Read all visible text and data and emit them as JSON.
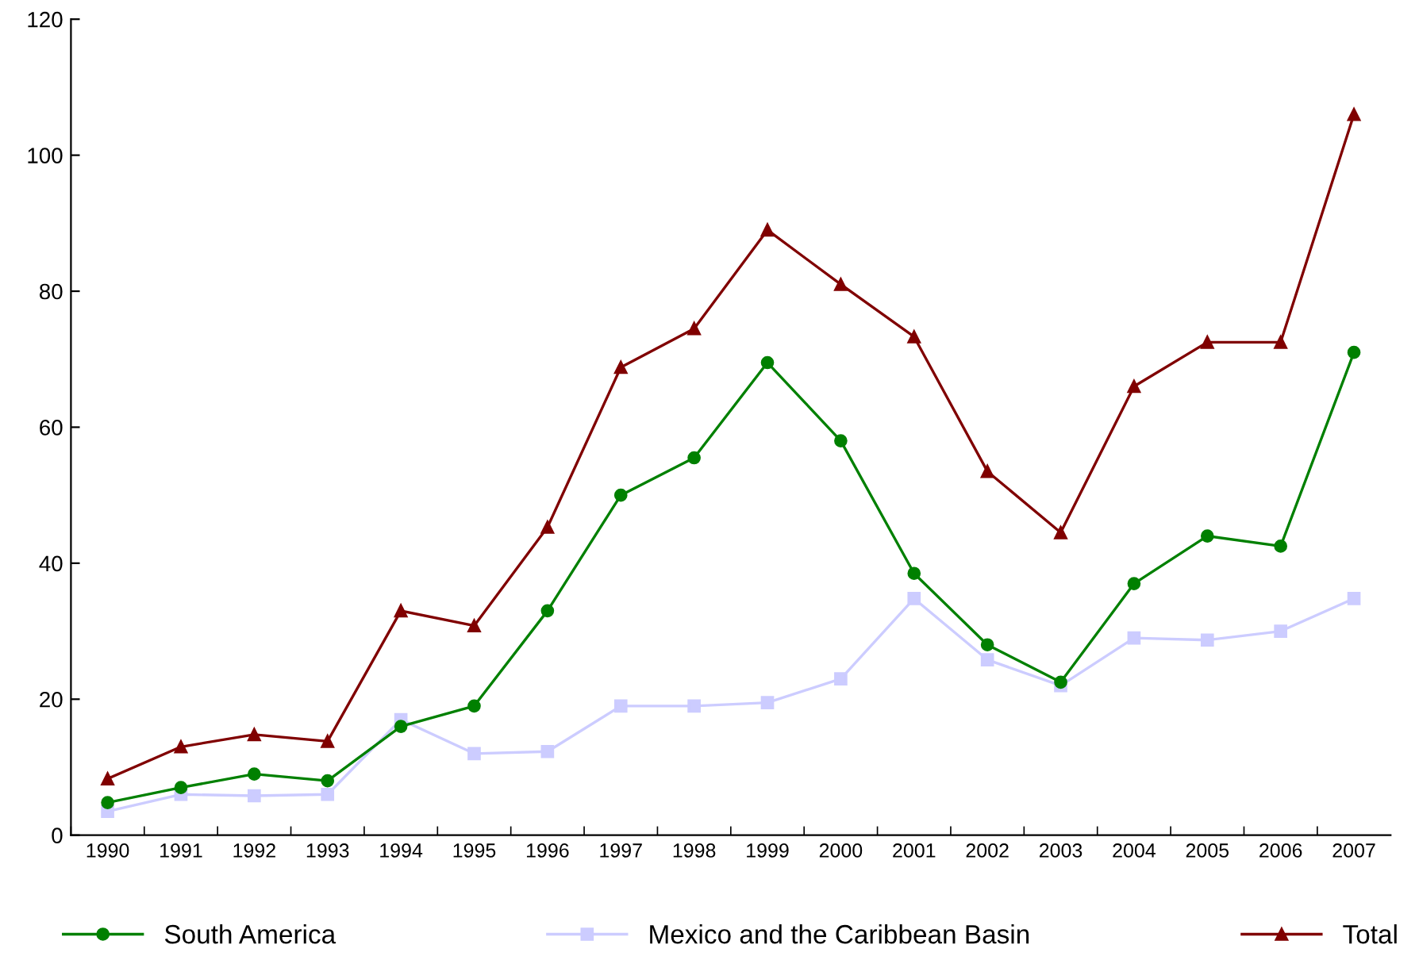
{
  "chart_data": {
    "type": "line",
    "categories": [
      "1990",
      "1991",
      "1992",
      "1993",
      "1994",
      "1995",
      "1996",
      "1997",
      "1998",
      "1999",
      "2000",
      "2001",
      "2002",
      "2003",
      "2004",
      "2005",
      "2006",
      "2007"
    ],
    "series": [
      {
        "name": "South America",
        "color": "#008000",
        "marker": "circle",
        "values": [
          4.8,
          7,
          9,
          8,
          16,
          19,
          33,
          50,
          55.5,
          69.5,
          58,
          38.5,
          28,
          22.5,
          37,
          44,
          42.5,
          71
        ]
      },
      {
        "name": "Mexico and the Caribbean Basin",
        "color": "#ccccff",
        "marker": "square",
        "values": [
          3.5,
          6,
          5.8,
          6,
          17,
          12,
          12.3,
          19,
          19,
          19.5,
          23,
          34.8,
          25.8,
          22,
          29,
          28.7,
          30,
          34.8
        ]
      },
      {
        "name": "Total",
        "color": "#800000",
        "marker": "triangle",
        "values": [
          8.3,
          13,
          14.8,
          13.8,
          33,
          30.8,
          45.3,
          68.8,
          74.5,
          89,
          81,
          73.3,
          53.5,
          44.5,
          66,
          72.5,
          72.5,
          106
        ]
      }
    ],
    "ylim": [
      0,
      120
    ],
    "yticks": [
      0,
      20,
      40,
      60,
      80,
      100,
      120
    ],
    "grid": false,
    "legend": "bottom"
  }
}
